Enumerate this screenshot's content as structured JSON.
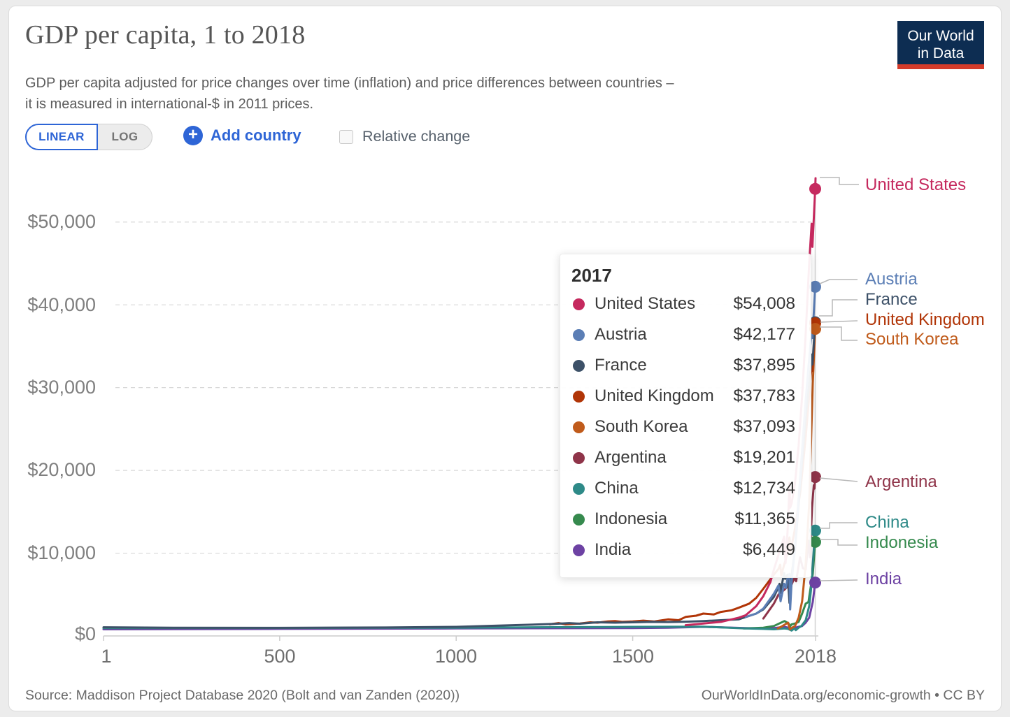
{
  "header": {
    "title": "GDP per capita, 1 to 2018",
    "subtitle_line1": "GDP per capita adjusted for price changes over time (inflation) and price differences between countries –",
    "subtitle_line2": "it is measured in international-$ in 2011 prices.",
    "logo": {
      "line1": "Our World",
      "line2": "in Data",
      "bg_color": "#0d2d52",
      "accent_color": "#d43b2a"
    }
  },
  "controls": {
    "linear_label": "LINEAR",
    "log_label": "LOG",
    "add_country_label": "Add country",
    "relative_change_label": "Relative change",
    "accent_blue": "#2e65d6"
  },
  "tooltip": {
    "year": "2017",
    "rows": [
      {
        "label": "United States",
        "value": "$54,008"
      },
      {
        "label": "Austria",
        "value": "$42,177"
      },
      {
        "label": "France",
        "value": "$37,895"
      },
      {
        "label": "United Kingdom",
        "value": "$37,783"
      },
      {
        "label": "South Korea",
        "value": "$37,093"
      },
      {
        "label": "Argentina",
        "value": "$19,201"
      },
      {
        "label": "China",
        "value": "$12,734"
      },
      {
        "label": "Indonesia",
        "value": "$11,365"
      },
      {
        "label": "India",
        "value": "$6,449"
      }
    ]
  },
  "axes": {
    "y_ticks": [
      "$50,000",
      "$40,000",
      "$30,000",
      "$20,000",
      "$10,000",
      "$0"
    ],
    "x_ticks": [
      "1",
      "500",
      "1000",
      "1500",
      "2018"
    ]
  },
  "footer": {
    "source": "Source: Maddison Project Database 2020 (Bolt and van Zanden (2020))",
    "license": "OurWorldInData.org/economic-growth • CC BY"
  },
  "chart_data": {
    "type": "line",
    "title": "GDP per capita, 1 to 2018",
    "unit": "international-$ in 2011 prices",
    "x_range": [
      1,
      2018
    ],
    "y_range": [
      0,
      56000
    ],
    "y_gridlines": [
      0,
      10000,
      20000,
      30000,
      40000,
      50000
    ],
    "x_tick_years": [
      1,
      500,
      1000,
      1500,
      2018
    ],
    "grid": "dashed",
    "legend_position": "right-edge-labels",
    "hover_year": 2017,
    "series": [
      {
        "name": "United States",
        "color": "#c5295e",
        "value_2017": 54008,
        "points": [
          [
            1650,
            1300
          ],
          [
            1700,
            1500
          ],
          [
            1750,
            1700
          ],
          [
            1800,
            2200
          ],
          [
            1820,
            2500
          ],
          [
            1850,
            3600
          ],
          [
            1870,
            4800
          ],
          [
            1890,
            6500
          ],
          [
            1900,
            8000
          ],
          [
            1913,
            9800
          ],
          [
            1929,
            12000
          ],
          [
            1933,
            8800
          ],
          [
            1940,
            13500
          ],
          [
            1944,
            18500
          ],
          [
            1946,
            15500
          ],
          [
            1950,
            16000
          ],
          [
            1960,
            18500
          ],
          [
            1970,
            23000
          ],
          [
            1980,
            29000
          ],
          [
            1990,
            36500
          ],
          [
            2000,
            45000
          ],
          [
            2007,
            49800
          ],
          [
            2009,
            47000
          ],
          [
            2013,
            50500
          ],
          [
            2017,
            54008
          ],
          [
            2018,
            55300
          ]
        ]
      },
      {
        "name": "Austria",
        "color": "#5b7eb5",
        "value_2017": 42177,
        "points": [
          [
            1820,
            2300
          ],
          [
            1850,
            2700
          ],
          [
            1870,
            3300
          ],
          [
            1900,
            5100
          ],
          [
            1913,
            6100
          ],
          [
            1919,
            4200
          ],
          [
            1929,
            6300
          ],
          [
            1934,
            5800
          ],
          [
            1938,
            6800
          ],
          [
            1944,
            7500
          ],
          [
            1946,
            3200
          ],
          [
            1950,
            6400
          ],
          [
            1960,
            10800
          ],
          [
            1975,
            19500
          ],
          [
            1990,
            28500
          ],
          [
            2000,
            33500
          ],
          [
            2008,
            37500
          ],
          [
            2009,
            36000
          ],
          [
            2017,
            42177
          ],
          [
            2018,
            42400
          ]
        ]
      },
      {
        "name": "France",
        "color": "#3d5168",
        "value_2017": 37895,
        "points": [
          [
            1,
            1050
          ],
          [
            200,
            1000
          ],
          [
            500,
            980
          ],
          [
            800,
            1020
          ],
          [
            1000,
            1100
          ],
          [
            1280,
            1450
          ],
          [
            1320,
            1550
          ],
          [
            1350,
            1480
          ],
          [
            1400,
            1650
          ],
          [
            1450,
            1600
          ],
          [
            1500,
            1650
          ],
          [
            1550,
            1700
          ],
          [
            1600,
            1680
          ],
          [
            1650,
            1720
          ],
          [
            1700,
            1800
          ],
          [
            1750,
            1900
          ],
          [
            1800,
            2000
          ],
          [
            1850,
            2700
          ],
          [
            1870,
            3200
          ],
          [
            1900,
            4700
          ],
          [
            1913,
            5900
          ],
          [
            1916,
            6300
          ],
          [
            1918,
            5200
          ],
          [
            1929,
            7600
          ],
          [
            1932,
            6900
          ],
          [
            1939,
            7400
          ],
          [
            1944,
            4000
          ],
          [
            1947,
            6200
          ],
          [
            1950,
            7300
          ],
          [
            1960,
            10500
          ],
          [
            1975,
            18500
          ],
          [
            1990,
            26500
          ],
          [
            2000,
            30500
          ],
          [
            2008,
            34000
          ],
          [
            2009,
            32800
          ],
          [
            2017,
            37895
          ],
          [
            2018,
            38100
          ]
        ]
      },
      {
        "name": "United Kingdom",
        "color": "#b13507",
        "value_2017": 37783,
        "points": [
          [
            1265,
            1400
          ],
          [
            1290,
            1550
          ],
          [
            1310,
            1400
          ],
          [
            1350,
            1500
          ],
          [
            1380,
            1650
          ],
          [
            1400,
            1600
          ],
          [
            1430,
            1750
          ],
          [
            1450,
            1800
          ],
          [
            1470,
            1700
          ],
          [
            1500,
            1750
          ],
          [
            1530,
            1850
          ],
          [
            1560,
            1750
          ],
          [
            1600,
            2000
          ],
          [
            1630,
            1900
          ],
          [
            1650,
            2300
          ],
          [
            1680,
            2450
          ],
          [
            1700,
            2700
          ],
          [
            1730,
            2600
          ],
          [
            1750,
            2900
          ],
          [
            1780,
            3100
          ],
          [
            1800,
            3400
          ],
          [
            1830,
            3900
          ],
          [
            1850,
            4600
          ],
          [
            1870,
            5700
          ],
          [
            1900,
            7400
          ],
          [
            1913,
            8100
          ],
          [
            1918,
            8600
          ],
          [
            1921,
            7300
          ],
          [
            1929,
            8600
          ],
          [
            1938,
            9900
          ],
          [
            1944,
            11900
          ],
          [
            1947,
            10200
          ],
          [
            1960,
            13000
          ],
          [
            1975,
            17500
          ],
          [
            1990,
            24000
          ],
          [
            2000,
            29000
          ],
          [
            2008,
            33500
          ],
          [
            2009,
            32000
          ],
          [
            2017,
            37783
          ],
          [
            2018,
            38000
          ]
        ]
      },
      {
        "name": "South Korea",
        "color": "#c05b1b",
        "value_2017": 37093,
        "points": [
          [
            1911,
            900
          ],
          [
            1920,
            1100
          ],
          [
            1930,
            1350
          ],
          [
            1940,
            1600
          ],
          [
            1945,
            800
          ],
          [
            1950,
            950
          ],
          [
            1960,
            1200
          ],
          [
            1970,
            2200
          ],
          [
            1980,
            4200
          ],
          [
            1990,
            8700
          ],
          [
            2000,
            16000
          ],
          [
            2010,
            30500
          ],
          [
            2017,
            37093
          ],
          [
            2018,
            37700
          ]
        ]
      },
      {
        "name": "Argentina",
        "color": "#8f3449",
        "value_2017": 19201,
        "points": [
          [
            1870,
            2100
          ],
          [
            1890,
            3300
          ],
          [
            1900,
            3900
          ],
          [
            1913,
            5000
          ],
          [
            1930,
            5600
          ],
          [
            1940,
            6000
          ],
          [
            1950,
            6200
          ],
          [
            1958,
            7000
          ],
          [
            1963,
            6600
          ],
          [
            1974,
            9500
          ],
          [
            1982,
            8200
          ],
          [
            1990,
            8000
          ],
          [
            1998,
            11500
          ],
          [
            2002,
            9500
          ],
          [
            2008,
            15500
          ],
          [
            2011,
            17200
          ],
          [
            2013,
            18200
          ],
          [
            2015,
            17800
          ],
          [
            2017,
            19201
          ],
          [
            2018,
            18900
          ]
        ]
      },
      {
        "name": "China",
        "color": "#2e8a88",
        "value_2017": 12734,
        "points": [
          [
            1,
            950
          ],
          [
            500,
            960
          ],
          [
            1000,
            1000
          ],
          [
            1500,
            1100
          ],
          [
            1700,
            1120
          ],
          [
            1820,
            900
          ],
          [
            1870,
            850
          ],
          [
            1900,
            800
          ],
          [
            1930,
            900
          ],
          [
            1940,
            850
          ],
          [
            1950,
            650
          ],
          [
            1958,
            900
          ],
          [
            1962,
            700
          ],
          [
            1970,
            1000
          ],
          [
            1978,
            1200
          ],
          [
            1990,
            1900
          ],
          [
            2000,
            3600
          ],
          [
            2005,
            5500
          ],
          [
            2010,
            8700
          ],
          [
            2017,
            12734
          ],
          [
            2018,
            13200
          ]
        ]
      },
      {
        "name": "Indonesia",
        "color": "#368a4e",
        "value_2017": 11365,
        "points": [
          [
            1815,
            900
          ],
          [
            1870,
            1000
          ],
          [
            1900,
            1200
          ],
          [
            1930,
            1800
          ],
          [
            1942,
            1500
          ],
          [
            1945,
            1100
          ],
          [
            1950,
            1400
          ],
          [
            1960,
            1500
          ],
          [
            1970,
            1700
          ],
          [
            1980,
            2700
          ],
          [
            1990,
            3900
          ],
          [
            1998,
            4100
          ],
          [
            2000,
            4700
          ],
          [
            2010,
            7500
          ],
          [
            2017,
            11365
          ],
          [
            2018,
            11800
          ]
        ]
      },
      {
        "name": "India",
        "color": "#6d42a3",
        "value_2017": 6449,
        "points": [
          [
            1,
            800
          ],
          [
            500,
            850
          ],
          [
            1000,
            900
          ],
          [
            1500,
            950
          ],
          [
            1600,
            1000
          ],
          [
            1700,
            1100
          ],
          [
            1820,
            950
          ],
          [
            1870,
            900
          ],
          [
            1900,
            950
          ],
          [
            1930,
            1100
          ],
          [
            1950,
            900
          ],
          [
            1960,
            1000
          ],
          [
            1980,
            1200
          ],
          [
            1990,
            1600
          ],
          [
            2000,
            2200
          ],
          [
            2010,
            4100
          ],
          [
            2017,
            6449
          ],
          [
            2018,
            6800
          ]
        ]
      }
    ]
  }
}
